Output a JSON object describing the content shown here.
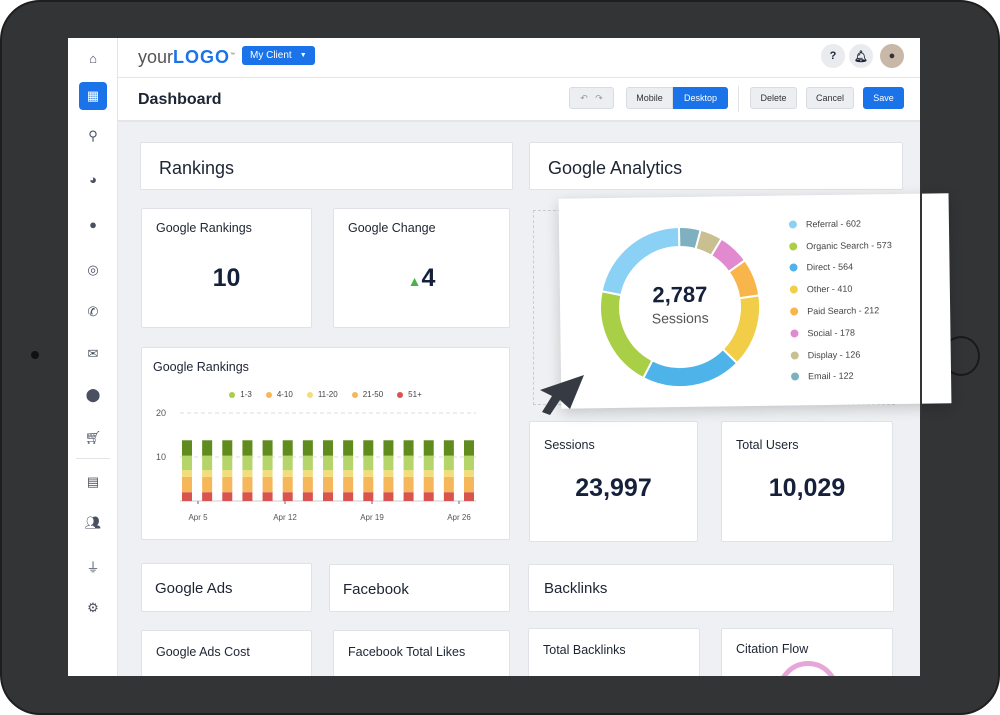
{
  "header": {
    "logo_prefix": "your",
    "logo_bold": "LOGO",
    "logo_tm": "™",
    "client_label": "My Client",
    "help_label": "?"
  },
  "toolbar": {
    "title": "Dashboard",
    "mobile": "Mobile",
    "desktop": "Desktop",
    "delete": "Delete",
    "cancel": "Cancel",
    "save": "Save",
    "active_view": "Desktop"
  },
  "sidebar": {
    "items": [
      "home",
      "dashboard",
      "search",
      "pie-chart",
      "chat",
      "seo",
      "phone",
      "email",
      "location",
      "cart",
      "document",
      "users",
      "plug",
      "settings"
    ],
    "active": "dashboard"
  },
  "sections": {
    "rankings": "Rankings",
    "analytics": "Google Analytics",
    "ads": "Google Ads",
    "facebook": "Facebook",
    "backlinks": "Backlinks"
  },
  "kpis": {
    "google_rankings": {
      "label": "Google Rankings",
      "value": "10"
    },
    "google_change": {
      "label": "Google Change",
      "value": "4",
      "trend": "up"
    },
    "sessions": {
      "label": "Sessions",
      "value": "23,997"
    },
    "total_users": {
      "label": "Total Users",
      "value": "10,029"
    },
    "ads_cost": {
      "label": "Google Ads Cost"
    },
    "fb_likes": {
      "label": "Facebook Total Likes"
    },
    "total_backlinks": {
      "label": "Total Backlinks"
    },
    "citation_flow": {
      "label": "Citation Flow"
    }
  },
  "chart_data": [
    {
      "type": "bar",
      "stacked": true,
      "title": "Google Rankings",
      "x_ticks": [
        "Apr 5",
        "Apr 12",
        "Apr 19",
        "Apr 26"
      ],
      "ylim": [
        0,
        20
      ],
      "y_ticks": [
        10,
        20
      ],
      "grid": true,
      "legend": "top",
      "bar_count": 15,
      "series": [
        {
          "name": "51+",
          "color": "#d9534f",
          "values": [
            2,
            2,
            2,
            2,
            2,
            2,
            2,
            2,
            2,
            2,
            2,
            2,
            2,
            2,
            2
          ]
        },
        {
          "name": "21-50",
          "color": "#f5b75a",
          "values": [
            3.5,
            3.5,
            3.5,
            3.5,
            3.5,
            3.5,
            3.5,
            3.5,
            3.5,
            3.5,
            3.5,
            3.5,
            3.5,
            3.5,
            3.5
          ]
        },
        {
          "name": "11-20",
          "color": "#f2dd7a",
          "values": [
            1.5,
            1.5,
            1.5,
            1.5,
            1.5,
            1.5,
            1.5,
            1.5,
            1.5,
            1.5,
            1.5,
            1.5,
            1.5,
            1.5,
            1.5
          ]
        },
        {
          "name": "4-10",
          "color": "#f0b550",
          "values": [
            3.3,
            3.3,
            3.3,
            3.3,
            3.3,
            3.3,
            3.3,
            3.3,
            3.3,
            3.3,
            3.3,
            3.3,
            3.3,
            3.3,
            3.3
          ]
        },
        {
          "name": "1-3",
          "color": "#a8cf45",
          "values": [
            3.5,
            3.5,
            3.5,
            3.5,
            3.5,
            3.5,
            3.5,
            3.5,
            3.5,
            3.5,
            3.5,
            3.5,
            3.5,
            3.5,
            3.5
          ]
        }
      ],
      "segment_colors": [
        "#d9534f",
        "#f5b75a",
        "#f2dd7a",
        "#b5d56a",
        "#5f8b1f"
      ]
    },
    {
      "type": "pie",
      "donut": true,
      "center_value": "2,787",
      "center_label": "Sessions",
      "slices": [
        {
          "label": "Referral - 602",
          "name": "Referral",
          "value": 602,
          "color": "#8bd0f5"
        },
        {
          "label": "Organic Search - 573",
          "name": "Organic Search",
          "value": 573,
          "color": "#a8cf45"
        },
        {
          "label": "Direct - 564",
          "name": "Direct",
          "value": 564,
          "color": "#4db3e8"
        },
        {
          "label": "Other - 410",
          "name": "Other",
          "value": 410,
          "color": "#f2cd47"
        },
        {
          "label": "Paid Search - 212",
          "name": "Paid Search",
          "value": 212,
          "color": "#f8b54b"
        },
        {
          "label": "Social - 178",
          "name": "Social",
          "value": 178,
          "color": "#e18ad0"
        },
        {
          "label": "Display - 126",
          "name": "Display",
          "value": 126,
          "color": "#c9bf90"
        },
        {
          "label": "Email - 122",
          "name": "Email",
          "value": 122,
          "color": "#7eb0c0"
        }
      ]
    }
  ]
}
